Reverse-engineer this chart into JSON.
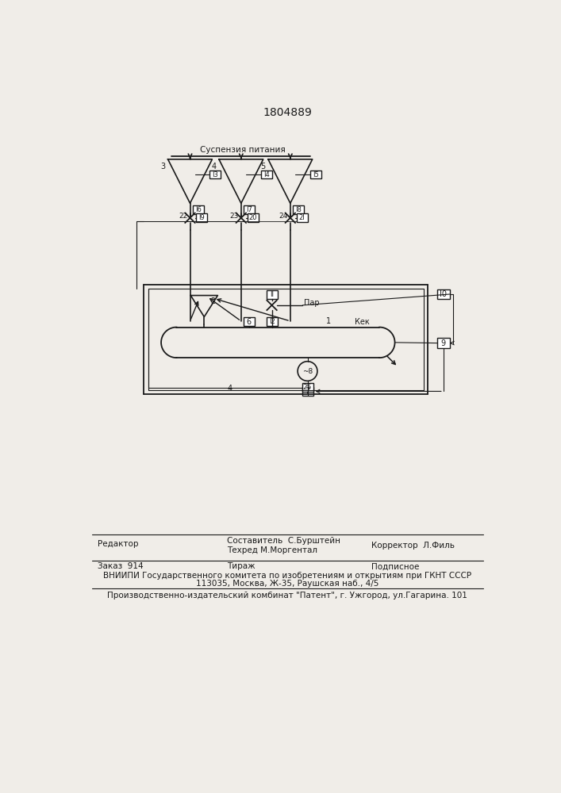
{
  "title": "1804889",
  "bg_color": "#f0ede8",
  "line_color": "#1a1a1a",
  "text_color": "#1a1a1a",
  "suspension_label": "Суспензия питания",
  "par_label": "Пар",
  "kek_label": "Кек",
  "bottom_line1": "Составитель  С.Бурштейн",
  "bottom_line2": "Техред М.Моргентал",
  "bottom_line3": "Корректор  Л.Филь",
  "bottom_line4": "Редактор",
  "bottom_line5": "Заказ  914",
  "bottom_line6": "Тираж",
  "bottom_line7": "Подписное",
  "bottom_line8": "ВНИИПИ Государственного комитета по изобретениям и открытиям при ГКНТ СССР",
  "bottom_line9": "113035, Москва, Ж-35, Раушская наб., 4/5",
  "bottom_line10": "Производственно-издательский комбинат \"Патент\", г. Ужгород, ул.Гагарина. 101"
}
